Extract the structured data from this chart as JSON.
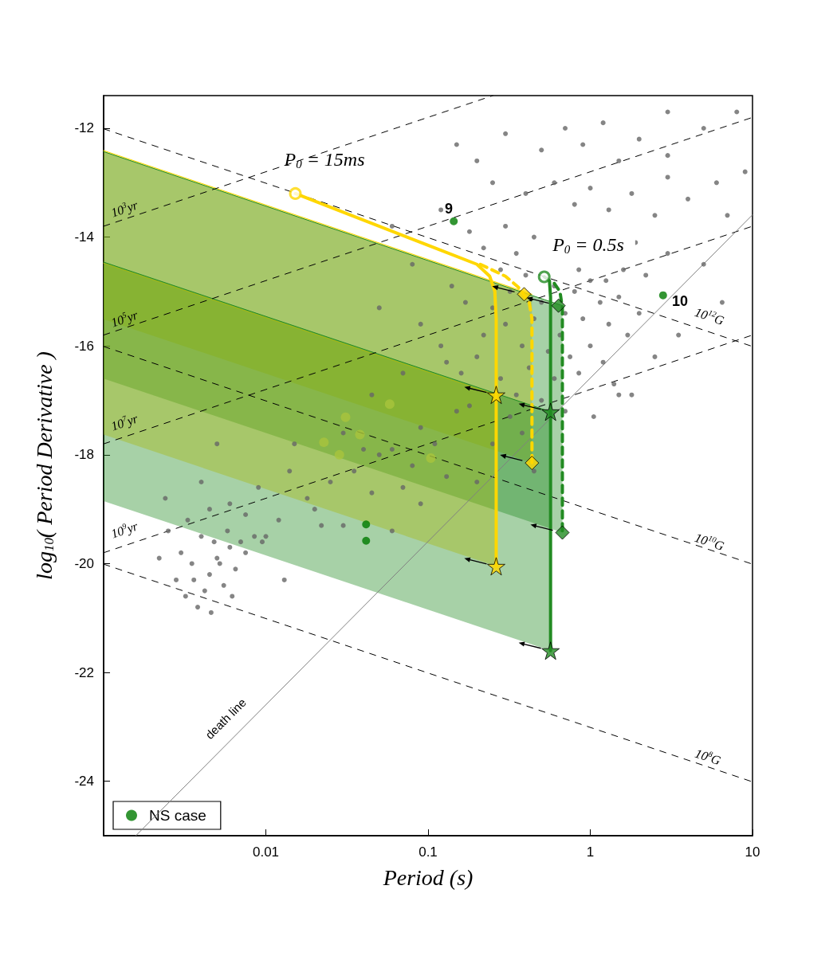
{
  "chart_data": {
    "type": "scatter",
    "xlabel": "Period (s)",
    "ylabel": "log$_{10}$( Period Derivative )",
    "xlim": [
      0.001,
      10
    ],
    "ylim": [
      -25,
      -11.4
    ],
    "xticks": [
      0.01,
      0.1,
      1,
      10
    ],
    "yticks": [
      -24,
      -22,
      -20,
      -18,
      -16,
      -14,
      -12
    ],
    "log": "x",
    "legend": "bottom left",
    "annotations": [
      "P$_{0}$ = 15ms",
      "P$_{0}$ = 0.5s",
      "9",
      "10",
      "10$^{3}$yr",
      "10$^{5}$yr",
      "10$^{7}$yr",
      "10$^{9}$yr",
      "10$^{12}$G",
      "10$^{10}$G",
      "10$^{8}$G",
      "death line"
    ],
    "series": [
      {
        "type": "line",
        "color": "#ffd700",
        "x": [
          0.001,
          0.437
        ],
        "values": [
          -12.41,
          -15.05
        ],
        "upper": [
          -12.41,
          -15.05
        ],
        "lower": [
          -15.51,
          -18.15
        ]
      },
      {
        "type": "line",
        "color": "#228b22",
        "x": [
          0.001,
          0.673
        ],
        "values": [
          -12.43,
          -15.26
        ],
        "upper": [
          -12.43,
          -15.26
        ],
        "lower": [
          -16.6,
          -19.43
        ]
      },
      {
        "type": "line",
        "color": "#ffd700",
        "x": [
          0.001,
          0.263
        ],
        "values": [
          -14.48,
          -16.9
        ],
        "upper": [
          -14.48,
          -16.9
        ],
        "lower": [
          -17.63,
          -20.05
        ]
      },
      {
        "type": "line",
        "color": "#228b22",
        "x": [
          0.001,
          0.569
        ],
        "values": [
          -14.46,
          -17.21
        ],
        "upper": [
          -14.46,
          -17.21
        ],
        "lower": [
          -18.85,
          -21.6
        ]
      },
      {
        "type": "line",
        "color": "#000000",
        "line_style": "dashed",
        "x": [
          0.001,
          10
        ],
        "values": [
          -12.01,
          -16.01
        ]
      },
      {
        "type": "line",
        "color": "#000000",
        "line_style": "dashed",
        "x": [
          0.001,
          10
        ],
        "values": [
          -16.01,
          -20.01
        ]
      },
      {
        "type": "line",
        "color": "#000000",
        "line_style": "dashed",
        "x": [
          0.001,
          10
        ],
        "values": [
          -20.01,
          -24.01
        ]
      },
      {
        "type": "line",
        "color": "#000000",
        "line_style": "dashed",
        "x": [
          0.001,
          0.251
        ],
        "values": [
          -13.8,
          -11.4
        ]
      },
      {
        "type": "line",
        "color": "#000000",
        "line_style": "dashed",
        "x": [
          0.001,
          10
        ],
        "values": [
          -15.8,
          -11.8
        ]
      },
      {
        "type": "line",
        "color": "#000000",
        "line_style": "dashed",
        "x": [
          0.001,
          10
        ],
        "values": [
          -17.8,
          -13.8
        ]
      },
      {
        "type": "line",
        "color": "#000000",
        "line_style": "dashed",
        "x": [
          0.001,
          10
        ],
        "values": [
          -19.8,
          -15.8
        ]
      },
      {
        "type": "line",
        "color": "#808080",
        "line_style": "solid",
        "x": [
          0.00158,
          10
        ],
        "values": [
          -25,
          -13.59
        ]
      },
      {
        "color": "#666666",
        "marker": "circle",
        "x": [
          0.15,
          0.2,
          0.3,
          0.5,
          0.7,
          0.9,
          1.2,
          1.5,
          2.0,
          3.0,
          5.0,
          8.0,
          0.25,
          0.4,
          0.6,
          0.8,
          1.0,
          1.3,
          1.8,
          2.5,
          4.0,
          6.0,
          0.12,
          0.18,
          0.22,
          0.3,
          0.35,
          0.45,
          0.55,
          0.65,
          0.75,
          0.85,
          0.95,
          1.1,
          1.25,
          1.4,
          1.6,
          1.9,
          2.2,
          3.0,
          0.28,
          0.32,
          0.4,
          0.5,
          0.6,
          0.7,
          0.8,
          0.9,
          1.0,
          1.15,
          1.3,
          1.5,
          1.7,
          2.0,
          0.25,
          0.3,
          0.38,
          0.45,
          0.55,
          0.65,
          0.75,
          0.85,
          1.0,
          1.2,
          1.4,
          0.2,
          0.28,
          0.35,
          0.42,
          0.5,
          0.6,
          0.7,
          0.32,
          0.22,
          0.17,
          0.14,
          0.16,
          0.18,
          0.12,
          0.25,
          0.38,
          0.45,
          2.5,
          3.5,
          1.8,
          5.0,
          7.0,
          9.0,
          3.0,
          6.5,
          1.05,
          0.08,
          0.06,
          0.09,
          0.05,
          0.0025,
          0.003,
          0.0035,
          0.004,
          0.0045,
          0.005,
          0.0055,
          0.006,
          0.0065,
          0.007,
          0.0028,
          0.0032,
          0.0038,
          0.0042,
          0.0048,
          0.0052,
          0.0058,
          0.0075,
          0.0085,
          0.0022,
          0.0033,
          0.0046,
          0.0062,
          0.0036,
          0.0095,
          0.013,
          0.0024,
          0.004,
          0.0045,
          0.006,
          0.0075,
          0.009,
          0.012,
          0.014,
          0.018,
          0.02,
          0.025,
          0.03,
          0.035,
          0.04,
          0.045,
          0.05,
          0.06,
          0.07,
          0.08,
          0.09,
          0.11,
          0.13,
          0.15,
          0.03,
          0.015,
          0.005,
          0.01,
          0.022,
          0.06,
          0.09,
          0.2,
          0.07,
          0.045,
          0.13,
          1.5,
          3.0
        ],
        "values": [
          -12.3,
          -12.6,
          -12.1,
          -12.4,
          -12.0,
          -12.3,
          -11.9,
          -12.6,
          -12.2,
          -12.5,
          -12.0,
          -11.7,
          -13.0,
          -13.2,
          -13.0,
          -13.4,
          -13.1,
          -13.5,
          -13.2,
          -13.6,
          -13.3,
          -13.0,
          -13.5,
          -13.9,
          -14.2,
          -13.8,
          -14.3,
          -14.0,
          null,
          null,
          null,
          -14.6,
          null,
          null,
          -14.8,
          null,
          -14.6,
          -14.1,
          -14.7,
          -14.3,
          -14.6,
          -15.0,
          -14.7,
          -15.2,
          -14.9,
          -15.4,
          -15.0,
          -15.5,
          -14.8,
          -15.2,
          -15.6,
          -15.1,
          -15.8,
          -15.4,
          -15.3,
          -15.6,
          -16.0,
          -15.5,
          -16.1,
          -15.8,
          -16.2,
          -16.5,
          -16.0,
          -16.3,
          -16.7,
          -16.2,
          -16.6,
          -16.9,
          -16.4,
          -17.0,
          -16.6,
          -17.2,
          -17.3,
          -15.8,
          -15.2,
          -14.9,
          -16.5,
          -17.1,
          -16.0,
          -17.8,
          -17.6,
          -18.3,
          -16.2,
          -15.8,
          -16.9,
          -14.5,
          -13.6,
          -12.8,
          -12.9,
          -15.2,
          -17.3,
          -14.5,
          -13.8,
          -15.6,
          -15.3,
          -19.4,
          -19.8,
          -20.0,
          -19.5,
          -20.2,
          -19.9,
          -20.4,
          -19.7,
          -20.1,
          -19.6,
          -20.3,
          -20.6,
          -20.8,
          -20.5,
          -19.6,
          -20.0,
          -19.4,
          -19.8,
          -19.5,
          -19.9,
          -19.2,
          -20.9,
          -20.6,
          -20.3,
          -19.6,
          -20.3,
          -18.8,
          -18.5,
          -19.0,
          -18.9,
          -19.1,
          -18.6,
          -19.2,
          -18.3,
          -18.8,
          -19.0,
          -18.5,
          -19.3,
          -18.3,
          -17.9,
          -18.7,
          -18.0,
          -17.9,
          -18.6,
          -18.2,
          -17.5,
          -17.8,
          -18.4,
          -17.2,
          -17.6,
          -17.8,
          -17.8,
          -19.5,
          -19.3,
          -19.4,
          -18.9,
          -18.5,
          -16.5,
          -16.9,
          -16.3,
          -16.9,
          -11.7
        ]
      },
      {
        "color": "#a9c43c",
        "marker": "circle",
        "x": [
          0.0228,
          0.0284,
          0.031,
          0.038,
          0.058,
          0.104
        ],
        "values": [
          -17.77,
          -18.0,
          -17.31,
          -17.63,
          -17.07,
          -18.06
        ]
      },
      {
        "type": "line",
        "color": "#ffd700",
        "line_style": "dashed",
        "x": [
          0.21,
          0.3,
          0.36,
          0.42,
          0.437,
          0.437
        ],
        "values": [
          -14.5,
          -14.72,
          -14.92,
          -15.2,
          -15.5,
          -18.15
        ]
      },
      {
        "type": "line",
        "color": "#ffd700",
        "line_style": "solid",
        "x": [
          0.0152,
          0.1,
          0.2,
          0.24,
          0.258,
          0.263,
          0.263
        ],
        "values": [
          -13.2,
          -14.15,
          -14.5,
          -14.72,
          -15.0,
          -15.5,
          -20.05
        ]
      },
      {
        "type": "line",
        "color": "#228b22",
        "line_style": "dashed",
        "x": [
          0.6,
          0.65,
          0.673,
          0.673
        ],
        "values": [
          -14.85,
          -15.0,
          -15.3,
          -19.43
        ]
      },
      {
        "type": "line",
        "color": "#228b22",
        "line_style": "solid",
        "x": [
          0.52,
          0.56,
          0.569,
          0.569
        ],
        "values": [
          -14.73,
          -14.8,
          -15.1,
          -21.6
        ]
      },
      {
        "color": "#ffd700",
        "marker": "circle",
        "x": [
          0.0152
        ],
        "values": [
          -13.2
        ]
      },
      {
        "color": "#228b22",
        "marker": "circle",
        "x": [
          0.52
        ],
        "values": [
          -14.73
        ]
      },
      {
        "color": "#ffd700",
        "marker": "diamond",
        "x": [
          0.391,
          0.437
        ],
        "values": [
          -15.05,
          -18.15
        ]
      },
      {
        "color": "#ffd700",
        "marker": "star",
        "x": [
          0.263,
          0.263
        ],
        "values": [
          -16.9,
          -20.05
        ]
      },
      {
        "color": "#228b22",
        "marker": "diamond",
        "x": [
          0.637,
          0.673
        ],
        "values": [
          -15.26,
          -19.43
        ]
      },
      {
        "color": "#228b22",
        "marker": "star",
        "x": [
          0.569,
          0.569
        ],
        "values": [
          -17.21,
          -21.6
        ]
      },
      {
        "name": "NS case",
        "color": "#007a00",
        "marker": "circle",
        "x": [
          0.144,
          2.81,
          0.0415,
          0.0415
        ],
        "values": [
          -13.71,
          -15.07,
          -19.28,
          -19.58
        ]
      }
    ]
  }
}
